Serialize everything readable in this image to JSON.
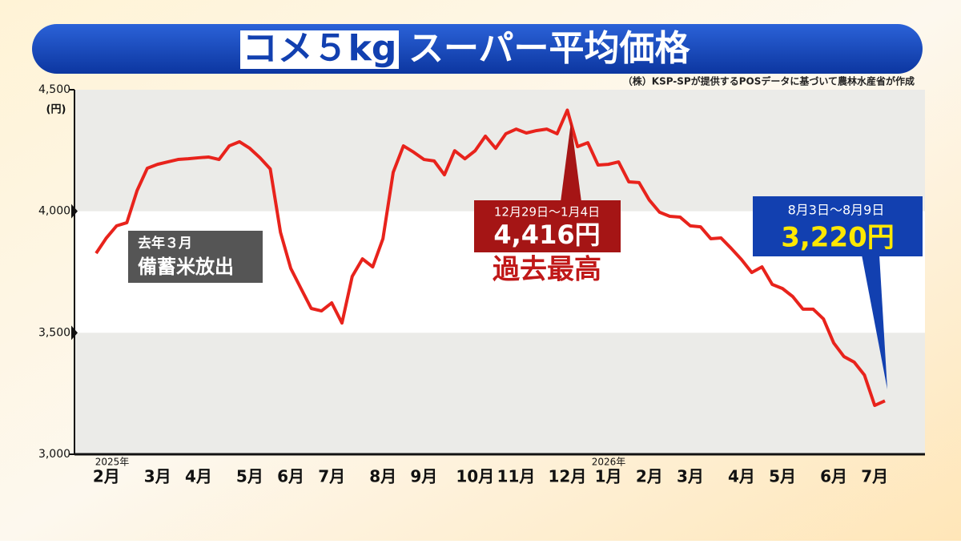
{
  "header": {
    "title_box": "コメ５kg",
    "title": "スーパー平均価格",
    "source": "（株）KSP-SPが提供するPOSデータに基づいて農林水産省が作成"
  },
  "chart_data": {
    "type": "line",
    "y_unit": "(円)",
    "year_labels": [
      "2025年",
      "2026年"
    ],
    "categories": [
      null,
      "2月",
      null,
      null,
      null,
      null,
      "3月",
      null,
      null,
      null,
      "4月",
      null,
      null,
      null,
      null,
      "5月",
      null,
      null,
      null,
      "6月",
      null,
      null,
      null,
      "7月",
      null,
      null,
      null,
      null,
      "8月",
      null,
      null,
      null,
      "9月",
      null,
      null,
      null,
      null,
      "10月",
      null,
      null,
      null,
      "11月",
      null,
      null,
      null,
      null,
      "12月",
      null,
      null,
      null,
      "1月",
      null,
      null,
      null,
      "2月",
      null,
      null,
      null,
      "3月",
      null,
      null,
      null,
      null,
      "4月",
      null,
      null,
      null,
      "5月",
      null,
      null,
      null,
      null,
      "6月",
      null,
      null,
      null,
      "7月",
      null
    ],
    "series": [
      {
        "color": "#e8231c",
        "values": [
          3827,
          3890,
          3940,
          3953,
          4085,
          4177,
          4193,
          4203,
          4213,
          4216,
          4220,
          4223,
          4213,
          4269,
          4286,
          4259,
          4220,
          4174,
          3913,
          3765,
          3682,
          3600,
          3590,
          3623,
          3540,
          3732,
          3804,
          3771,
          3887,
          4160,
          4269,
          4243,
          4213,
          4207,
          4150,
          4249,
          4216,
          4249,
          4309,
          4259,
          4319,
          4338,
          4322,
          4332,
          4338,
          4319,
          4416,
          4266,
          4282,
          4190,
          4193,
          4203,
          4121,
          4118,
          4046,
          3996,
          3979,
          3976,
          3940,
          3936,
          3887,
          3890,
          3847,
          3801,
          3748,
          3771,
          3699,
          3682,
          3649,
          3597,
          3597,
          3557,
          3458,
          3402,
          3379,
          3326,
          3201,
          3220
        ],
        "value_labels": [
          null,
          null,
          null,
          null,
          null,
          null,
          null,
          null,
          null,
          null,
          null,
          null,
          null,
          null,
          null,
          null,
          null,
          null,
          null,
          null,
          null,
          null,
          null,
          null,
          null,
          null,
          null,
          null,
          null,
          null,
          null,
          null,
          null,
          null,
          null,
          null,
          null,
          null,
          null,
          null,
          null,
          null,
          null,
          null,
          null,
          null,
          "4,416円",
          null,
          null,
          null,
          null,
          null,
          null,
          null,
          null,
          null,
          null,
          null,
          null,
          null,
          null,
          null,
          null,
          null,
          null,
          null,
          null,
          null,
          null,
          null,
          null,
          null,
          null,
          null,
          null,
          null,
          null,
          "3,220円"
        ]
      }
    ],
    "ylim": [
      3000,
      4500
    ],
    "yticks": [
      {
        "value": 3000,
        "label": "3,000"
      },
      {
        "value": 3500,
        "label": "3,500"
      },
      {
        "value": 4000,
        "label": "4,000"
      },
      {
        "value": 4500,
        "label": "4,500"
      }
    ],
    "annotations": {
      "release": [
        "去年３月",
        "備蓄米放出"
      ],
      "peak_period": "12月29日～1月4日",
      "peak_note": "過去最高",
      "latest_period": "8月3日～8月9日"
    }
  }
}
